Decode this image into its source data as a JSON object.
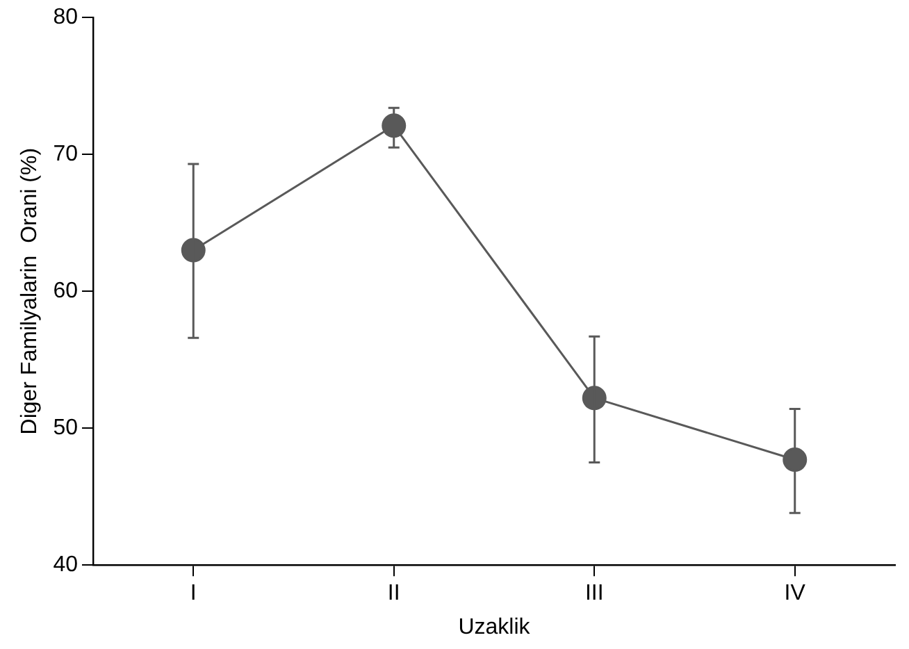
{
  "chart_data": {
    "type": "line",
    "xlabel": "Uzaklik",
    "ylabel": "Diger Familyalarin  Orani (%)",
    "categories": [
      "I",
      "II",
      "III",
      "IV"
    ],
    "series": [
      {
        "color": "#595959",
        "values": [
          63,
          72.1,
          52.2,
          47.7
        ],
        "errors": [
          [
            56.6,
            69.3
          ],
          [
            70.5,
            73.4
          ],
          [
            47.5,
            56.7
          ],
          [
            43.8,
            51.4
          ]
        ]
      }
    ],
    "ylim": [
      40,
      80
    ],
    "yticks": [
      40,
      50,
      60,
      70,
      80
    ],
    "grid": false,
    "legend": false,
    "marker": "circle",
    "line_style": "solid"
  }
}
